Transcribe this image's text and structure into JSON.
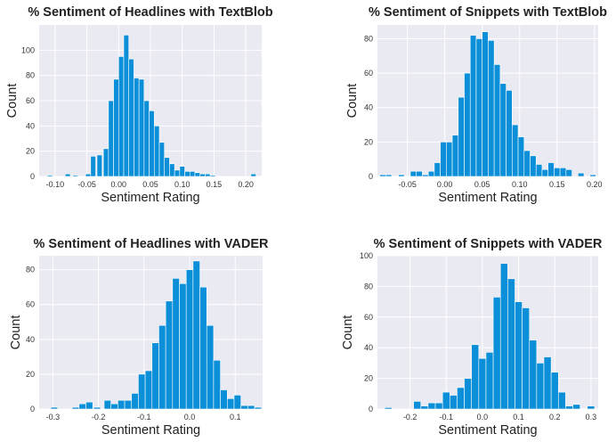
{
  "figure": {
    "background": "#ffffff"
  },
  "style": {
    "plot_bg": "#eaeaf2",
    "grid": "#ffffff",
    "bar_fill": "#0a8fd8",
    "bar_edge": "#ffffff"
  },
  "chart_data": [
    {
      "type": "bar",
      "title": "% Sentiment of Headlines with TextBlob",
      "xlabel": "Sentiment Rating",
      "ylabel": "Count",
      "xlim": [
        -0.125,
        0.225
      ],
      "ylim": [
        0,
        120
      ],
      "xticks": [
        -0.1,
        -0.05,
        0.0,
        0.05,
        0.1,
        0.15,
        0.2
      ],
      "xtick_labels": [
        "-0.10",
        "-0.05",
        "0.00",
        "0.05",
        "0.10",
        "0.15",
        "0.20"
      ],
      "yticks": [
        0,
        20,
        40,
        60,
        80,
        100
      ],
      "ytick_labels": [
        "0",
        "20",
        "40",
        "60",
        "80",
        "100"
      ],
      "grid": true,
      "x": [
        -0.108,
        -0.08,
        -0.068,
        -0.048,
        -0.04,
        -0.03,
        -0.02,
        -0.012,
        -0.004,
        0.004,
        0.012,
        0.02,
        0.028,
        0.036,
        0.044,
        0.052,
        0.06,
        0.068,
        0.076,
        0.084,
        0.092,
        0.1,
        0.108,
        0.116,
        0.124,
        0.132,
        0.14,
        0.148,
        0.212
      ],
      "values": [
        1,
        2,
        1,
        2,
        16,
        17,
        22,
        60,
        77,
        95,
        112,
        93,
        78,
        77,
        60,
        52,
        40,
        27,
        15,
        10,
        5,
        8,
        4,
        4,
        3,
        2,
        2,
        1,
        2
      ],
      "bin_width": 0.008
    },
    {
      "type": "bar",
      "title": "% Sentiment of Snippets with TextBlob",
      "xlabel": "Sentiment Rating",
      "ylabel": "Count",
      "xlim": [
        -0.09,
        0.205
      ],
      "ylim": [
        0,
        88
      ],
      "xticks": [
        -0.05,
        0.0,
        0.05,
        0.1,
        0.15,
        0.2
      ],
      "xtick_labels": [
        "-0.05",
        "0.00",
        "0.05",
        "0.10",
        "0.15",
        "0.20"
      ],
      "yticks": [
        0,
        20,
        40,
        60,
        80
      ],
      "ytick_labels": [
        "0",
        "20",
        "40",
        "60",
        "80"
      ],
      "grid": true,
      "x": [
        -0.083,
        -0.075,
        -0.058,
        -0.042,
        -0.034,
        -0.026,
        -0.018,
        -0.01,
        -0.002,
        0.006,
        0.014,
        0.022,
        0.03,
        0.038,
        0.046,
        0.054,
        0.062,
        0.07,
        0.078,
        0.086,
        0.094,
        0.102,
        0.11,
        0.118,
        0.126,
        0.134,
        0.142,
        0.15,
        0.158,
        0.166,
        0.182,
        0.198
      ],
      "values": [
        1,
        1,
        1,
        3,
        3,
        1,
        3,
        8,
        20,
        20,
        24,
        46,
        60,
        82,
        80,
        84,
        79,
        65,
        54,
        50,
        30,
        23,
        15,
        12,
        7,
        4,
        8,
        5,
        5,
        4,
        2,
        1
      ],
      "bin_width": 0.008
    },
    {
      "type": "bar",
      "title": "% Sentiment of Headlines with VADER",
      "xlabel": "Sentiment Rating",
      "ylabel": "Count",
      "xlim": [
        -0.33,
        0.16
      ],
      "ylim": [
        0,
        88
      ],
      "xticks": [
        -0.3,
        -0.2,
        -0.1,
        0.0,
        0.1
      ],
      "xtick_labels": [
        "-0.3",
        "-0.2",
        "-0.1",
        "0.0",
        "0.1"
      ],
      "yticks": [
        0,
        20,
        40,
        60,
        80
      ],
      "ytick_labels": [
        "0",
        "20",
        "40",
        "60",
        "80"
      ],
      "grid": true,
      "x": [
        -0.297,
        -0.25,
        -0.235,
        -0.22,
        -0.203,
        -0.18,
        -0.165,
        -0.15,
        -0.135,
        -0.12,
        -0.105,
        -0.09,
        -0.075,
        -0.06,
        -0.045,
        -0.03,
        -0.015,
        0.0,
        0.015,
        0.03,
        0.045,
        0.06,
        0.075,
        0.09,
        0.105,
        0.12,
        0.135,
        0.15
      ],
      "values": [
        1,
        1,
        3,
        4,
        1,
        5,
        3,
        5,
        5,
        9,
        20,
        22,
        38,
        48,
        62,
        75,
        72,
        80,
        85,
        70,
        48,
        28,
        11,
        6,
        8,
        2,
        2,
        1
      ],
      "bin_width": 0.015
    },
    {
      "type": "bar",
      "title": "% Sentiment of Snippets with VADER",
      "xlabel": "Sentiment Rating",
      "ylabel": "Count",
      "xlim": [
        -0.29,
        0.32
      ],
      "ylim": [
        0,
        100
      ],
      "xticks": [
        -0.2,
        -0.1,
        0.0,
        0.1,
        0.2,
        0.3
      ],
      "xtick_labels": [
        "-0.2",
        "-0.1",
        "0.0",
        "0.1",
        "0.2",
        "0.3"
      ],
      "yticks": [
        0,
        20,
        40,
        60,
        80,
        100
      ],
      "ytick_labels": [
        "0",
        "20",
        "40",
        "60",
        "80",
        "100"
      ],
      "grid": true,
      "x": [
        -0.26,
        -0.18,
        -0.16,
        -0.14,
        -0.12,
        -0.1,
        -0.08,
        -0.06,
        -0.04,
        -0.02,
        0.0,
        0.02,
        0.04,
        0.06,
        0.08,
        0.1,
        0.12,
        0.14,
        0.16,
        0.18,
        0.2,
        0.22,
        0.24,
        0.26,
        0.3
      ],
      "values": [
        1,
        5,
        2,
        4,
        4,
        11,
        9,
        14,
        20,
        42,
        33,
        37,
        73,
        95,
        85,
        70,
        66,
        45,
        30,
        34,
        24,
        11,
        2,
        3,
        2
      ],
      "bin_width": 0.02
    }
  ]
}
